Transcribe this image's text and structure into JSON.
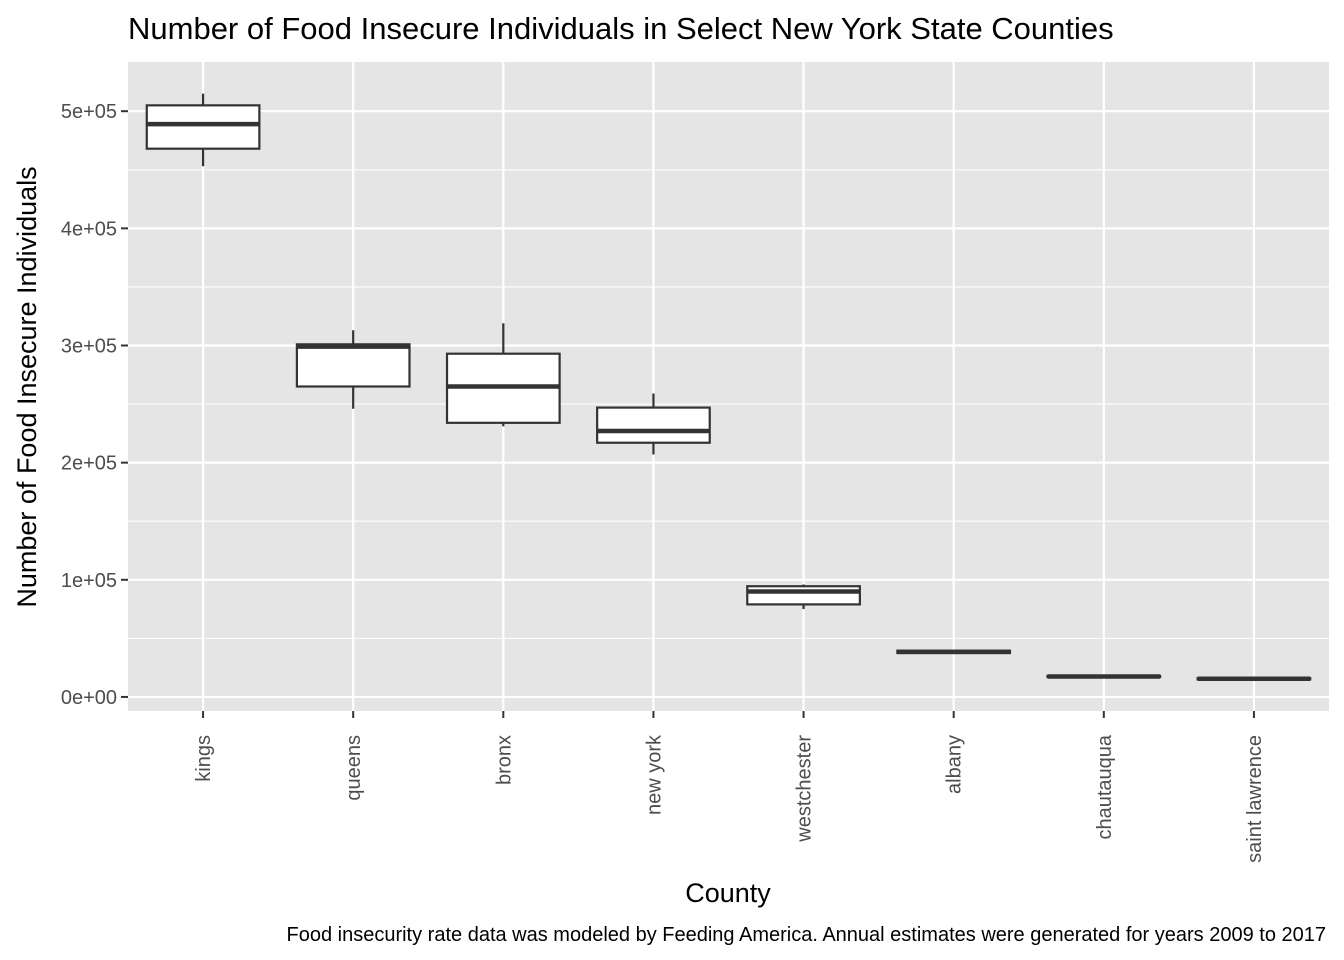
{
  "chart_data": {
    "type": "boxplot",
    "title": "Number of Food Insecure Individuals in Select New York State Counties",
    "xlabel": "County",
    "ylabel": "Number of Food Insecure Individuals",
    "caption": "Food insecurity rate data was modeled by Feeding America. Annual estimates were generated for years 2009 to 2017",
    "ylim": [
      -12000,
      542000
    ],
    "yticks": [
      0,
      100000,
      200000,
      300000,
      400000,
      500000
    ],
    "ytick_labels": [
      "0e+00",
      "1e+05",
      "2e+05",
      "3e+05",
      "4e+05",
      "5e+05"
    ],
    "grid": true,
    "categories": [
      "kings",
      "queens",
      "bronx",
      "new york",
      "westchester",
      "albany",
      "chautauqua",
      "saint lawrence"
    ],
    "boxes": [
      {
        "category": "kings",
        "min": 453000,
        "q1": 468000,
        "median": 489000,
        "q3": 505000,
        "max": 515000
      },
      {
        "category": "queens",
        "min": 246000,
        "q1": 265000,
        "median": 299000,
        "q3": 301000,
        "max": 313000
      },
      {
        "category": "bronx",
        "min": 231000,
        "q1": 234000,
        "median": 265000,
        "q3": 293000,
        "max": 319000
      },
      {
        "category": "new york",
        "min": 207000,
        "q1": 217000,
        "median": 227000,
        "q3": 247000,
        "max": 259000
      },
      {
        "category": "westchester",
        "min": 75000,
        "q1": 79000,
        "median": 90000,
        "q3": 94500,
        "max": 96000
      },
      {
        "category": "albany",
        "min": 37000,
        "q1": 37500,
        "median": 38500,
        "q3": 39500,
        "max": 40000
      },
      {
        "category": "chautauqua",
        "min": 16500,
        "q1": 17000,
        "median": 17500,
        "q3": 18000,
        "max": 18500
      },
      {
        "category": "saint lawrence",
        "min": 14500,
        "q1": 15000,
        "median": 15500,
        "q3": 16000,
        "max": 16500
      }
    ],
    "colors": {
      "panel_background": "#e5e5e5",
      "grid": "#ffffff",
      "box_fill": "#ffffff",
      "box_stroke": "#333333",
      "tick_text": "#4d4d4d"
    }
  }
}
